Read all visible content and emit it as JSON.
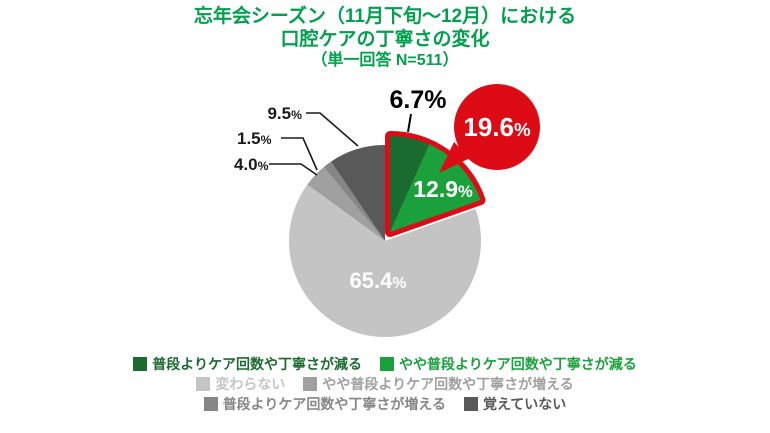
{
  "colors": {
    "title_green": "#00a04d",
    "callout_red": "#dd0b16",
    "label_black": "#1a1a1a",
    "inner_label_white": "#ffffff"
  },
  "chart_data": {
    "type": "pie",
    "title_lines": [
      "忘年会シーズン（11月下旬〜12月）における",
      "口腔ケアの丁寧さの変化",
      "（単一回答 N=511）"
    ],
    "percent_sign": "%",
    "legend_position": "bottom",
    "highlight_border_color": "#dd0b16",
    "slices": [
      {
        "label": "普段よりケア回数や丁寧さが減る",
        "value": 6.7,
        "value_str": "6.7",
        "color": "#1a6b2f",
        "exploded": true
      },
      {
        "label": "やや普段よりケア回数や丁寧さが減る",
        "value": 12.9,
        "value_str": "12.9",
        "color": "#1aa13c",
        "exploded": true
      },
      {
        "label": "変わらない",
        "value": 65.4,
        "value_str": "65.4",
        "color": "#c4c4c4",
        "exploded": false
      },
      {
        "label": "やや普段よりケア回数や丁寧さが増える",
        "value": 4.0,
        "value_str": "4.0",
        "color": "#a0a0a0",
        "exploded": false
      },
      {
        "label": "普段よりケア回数や丁寧さが増える",
        "value": 1.5,
        "value_str": "1.5",
        "color": "#868686",
        "exploded": false
      },
      {
        "label": "覚えていない",
        "value": 9.5,
        "value_str": "9.5",
        "color": "#595959",
        "exploded": false
      }
    ],
    "callout": {
      "value": 19.6,
      "value_str": "19.6",
      "color": "#dd0b16"
    }
  }
}
